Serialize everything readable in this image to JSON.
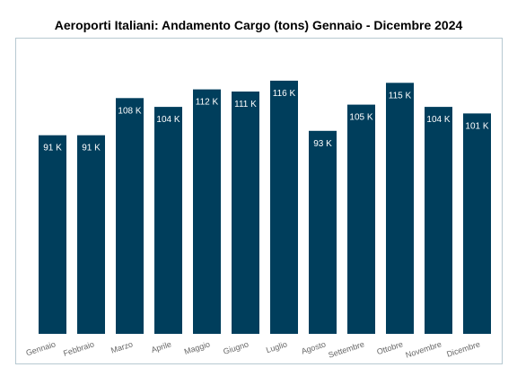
{
  "chart_data": {
    "type": "bar",
    "title": "Aeroporti Italiani: Andamento Cargo (tons) Gennaio - Dicembre 2024",
    "xlabel": "",
    "ylabel": "",
    "categories": [
      "Gennaio",
      "Febbraio",
      "Marzo",
      "Aprile",
      "Maggio",
      "Giugno",
      "Luglio",
      "Agosto",
      "Settembre",
      "Ottobre",
      "Novembre",
      "Dicembre"
    ],
    "values": [
      91,
      91,
      108,
      104,
      112,
      111,
      116,
      93,
      105,
      115,
      104,
      101
    ],
    "data_labels": [
      "91 K",
      "91 K",
      "108 K",
      "104 K",
      "112 K",
      "111 K",
      "116 K",
      "93 K",
      "105 K",
      "115 K",
      "104 K",
      "101 K"
    ],
    "ylim": [
      0,
      125
    ],
    "grid": false,
    "bar_color": "#003e5c"
  }
}
